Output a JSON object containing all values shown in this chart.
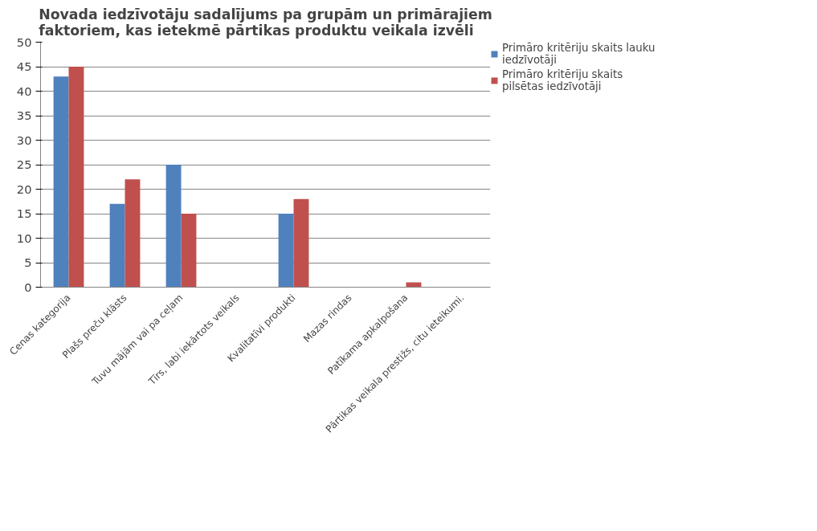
{
  "chart_data": {
    "type": "bar",
    "title": "Novada iedzīvotāju sadalījums pa grupām un primārajiem faktoriem, kas ietekmē pārtikas produktu veikala izvēli",
    "categories": [
      "Cenas kategorija",
      "Plašs preču klāsts",
      "Tuvu mājām vai pa ceļam",
      "Tīrs, labi iekārtots veikals",
      "Kvalitatīvi produkti",
      "Mazas rindas",
      "Patīkama apkalpošana",
      "Pārtikas veikala prestižs, citu ieteikumi."
    ],
    "series": [
      {
        "name": "Primāro kritēriju skaits lauku iedzīvotāji",
        "color": "#4f81bd",
        "values": [
          43,
          17,
          25,
          0,
          15,
          0,
          0,
          0
        ]
      },
      {
        "name": "Primāro kritēriju skaits pilsētas iedzīvotāji",
        "color": "#c0504d",
        "values": [
          45,
          22,
          15,
          0,
          18,
          0,
          1,
          0
        ]
      }
    ],
    "ylim": [
      0,
      50
    ],
    "yticks": [
      0,
      5,
      10,
      15,
      20,
      25,
      30,
      35,
      40,
      45,
      50
    ],
    "grid": "y",
    "legend": "right"
  }
}
